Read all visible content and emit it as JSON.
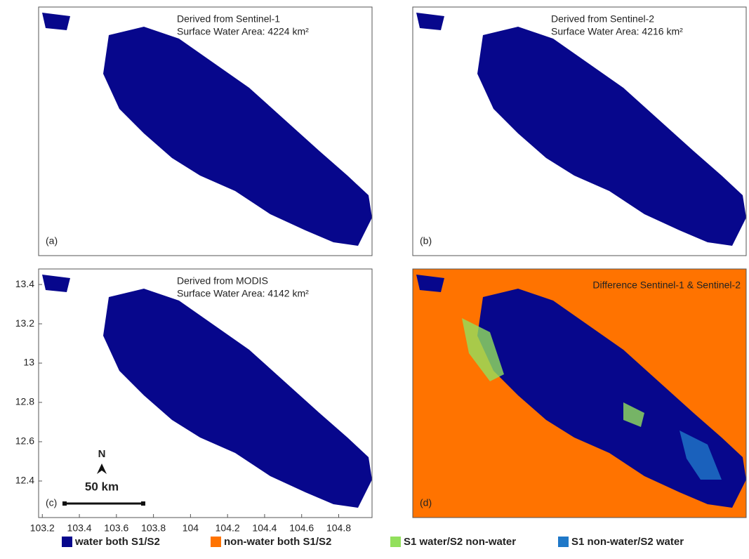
{
  "panels": [
    {
      "title": "Derived from Sentinel-1",
      "subtitle": "Surface Water Area: 4224 km²",
      "label": "(a)"
    },
    {
      "title": "Derived from Sentinel-2",
      "subtitle": "Surface Water Area: 4216 km²",
      "label": "(b)"
    },
    {
      "title": "Derived from MODIS",
      "subtitle": "Surface Water Area: 4142 km²",
      "label": "(c)"
    },
    {
      "title": "Difference Sentinel-1 & Sentinel-2",
      "label": "(d)"
    }
  ],
  "axes": {
    "xlim": [
      103.18,
      104.98
    ],
    "ylim": [
      12.214,
      13.479
    ],
    "xticks": [
      103.2,
      103.4,
      103.6,
      103.8,
      104,
      104.2,
      104.4,
      104.6,
      104.8
    ],
    "yticks": [
      12.4,
      12.6,
      12.8,
      13,
      13.2,
      13.4
    ]
  },
  "scale_bar": {
    "north": "N",
    "label": "50 km"
  },
  "legend": [
    {
      "label": "water both S1/S2",
      "color": "#07078c"
    },
    {
      "label": "non-water both S1/S2",
      "color": "#ff7300"
    },
    {
      "label": "S1 water/S2 non-water",
      "color": "#92e05c"
    },
    {
      "label": "S1 non-water/S2 water",
      "color": "#1f78c8"
    }
  ]
}
